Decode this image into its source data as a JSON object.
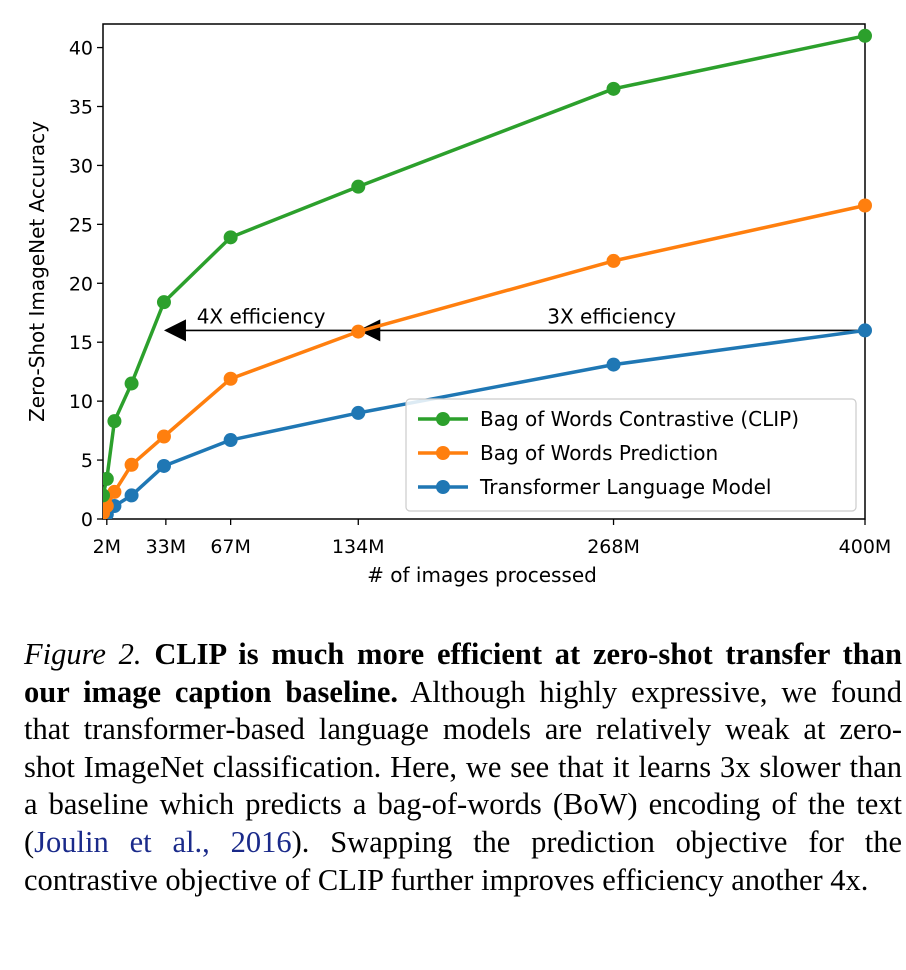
{
  "chart_data": {
    "type": "line",
    "xlabel": "# of images processed",
    "ylabel": "Zero-Shot ImageNet Accuracy",
    "xlim": [
      0,
      400
    ],
    "ylim": [
      0,
      42
    ],
    "x_ticks": [
      {
        "value": 2,
        "label": "2M"
      },
      {
        "value": 33,
        "label": "33M"
      },
      {
        "value": 67,
        "label": "67M"
      },
      {
        "value": 134,
        "label": "134M"
      },
      {
        "value": 268,
        "label": "268M"
      },
      {
        "value": 400,
        "label": "400M"
      }
    ],
    "y_ticks": [
      0,
      5,
      10,
      15,
      20,
      25,
      30,
      35,
      40
    ],
    "grid": false,
    "legend_position": "lower-right",
    "series": [
      {
        "name": "Bag of Words Contrastive (CLIP)",
        "color": "#2ca02c",
        "x": [
          0,
          2,
          6,
          15,
          32,
          67,
          134,
          268,
          400
        ],
        "y": [
          2.0,
          3.4,
          8.3,
          11.5,
          18.4,
          23.9,
          28.2,
          36.5,
          41.0
        ]
      },
      {
        "name": "Bag of Words Prediction",
        "color": "#ff7f0e",
        "x": [
          0,
          2,
          6,
          15,
          32,
          67,
          134,
          268,
          400
        ],
        "y": [
          0.5,
          1.1,
          2.3,
          4.6,
          7.0,
          11.9,
          15.9,
          21.9,
          26.6
        ]
      },
      {
        "name": "Transformer Language Model",
        "color": "#1f77b4",
        "x": [
          0,
          2,
          6,
          15,
          32,
          67,
          134,
          268,
          400
        ],
        "y": [
          0.2,
          0.4,
          1.1,
          2.0,
          4.5,
          6.7,
          9.0,
          13.1,
          16.0
        ]
      }
    ],
    "annotations": [
      {
        "text": "4X efficiency",
        "x_from": 134,
        "x_to": 32,
        "y": 16.0
      },
      {
        "text": "3X efficiency",
        "x_from": 400,
        "x_to": 134,
        "y": 16.0
      }
    ]
  },
  "caption": {
    "label": "Figure 2.",
    "bold": "CLIP is much more efficient at zero-shot transfer than our image caption baseline.",
    "text_before_cite": "Although highly expressive, we found that transformer-based language models are relatively weak at zero-shot ImageNet classification. Here, we see that it learns 3x slower than a baseline which predicts a bag-of-words (BoW) encoding of the text (",
    "cite": "Joulin et al., 2016",
    "text_after_cite": "). Swapping the prediction objective for the contrastive objective of CLIP further improves efficiency another 4x."
  }
}
